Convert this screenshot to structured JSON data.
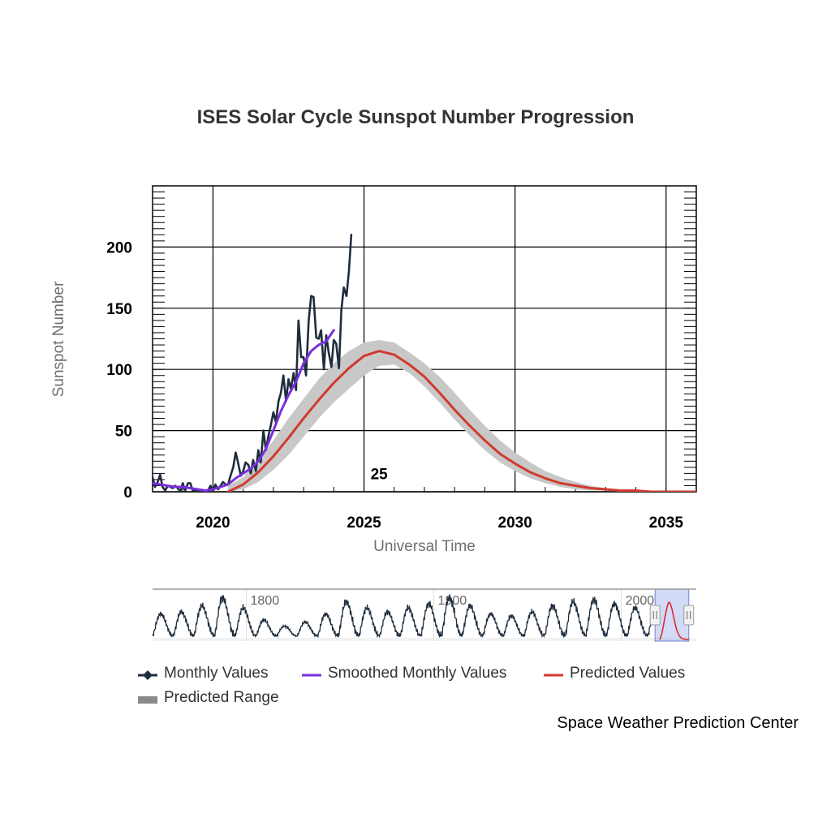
{
  "chart_data": {
    "type": "line",
    "title": "ISES Solar Cycle Sunspot Number Progression",
    "xlabel": "Universal Time",
    "ylabel": "Sunspot Number",
    "xlim": [
      2018.0,
      2036.0
    ],
    "ylim": [
      0,
      250
    ],
    "x_ticks": [
      "2020",
      "2025",
      "2030",
      "2035"
    ],
    "y_ticks": [
      "0",
      "50",
      "100",
      "150",
      "200"
    ],
    "grid": true,
    "annotations": [
      {
        "text": "25",
        "x": 2025.5,
        "y": 15
      }
    ],
    "series": [
      {
        "name": "Monthly Values",
        "color": "#1e2d3d",
        "x": [
          2018.0,
          2018.08,
          2018.17,
          2018.25,
          2018.33,
          2018.42,
          2018.5,
          2018.58,
          2018.67,
          2018.75,
          2018.83,
          2018.92,
          2019.0,
          2019.08,
          2019.17,
          2019.25,
          2019.33,
          2019.42,
          2019.5,
          2019.58,
          2019.67,
          2019.75,
          2019.83,
          2019.92,
          2020.0,
          2020.08,
          2020.17,
          2020.25,
          2020.33,
          2020.42,
          2020.5,
          2020.58,
          2020.67,
          2020.75,
          2020.83,
          2020.92,
          2021.0,
          2021.08,
          2021.17,
          2021.25,
          2021.33,
          2021.42,
          2021.5,
          2021.58,
          2021.67,
          2021.75,
          2021.83,
          2021.92,
          2022.0,
          2022.08,
          2022.17,
          2022.25,
          2022.33,
          2022.42,
          2022.5,
          2022.58,
          2022.67,
          2022.75,
          2022.83,
          2022.92,
          2023.0,
          2023.08,
          2023.17,
          2023.25,
          2023.33,
          2023.42,
          2023.5,
          2023.58,
          2023.67,
          2023.75,
          2023.83,
          2023.92,
          2024.0,
          2024.08,
          2024.17,
          2024.25,
          2024.33,
          2024.42,
          2024.5,
          2024.58
        ],
        "y": [
          12,
          4,
          8,
          14,
          4,
          1,
          5,
          4,
          3,
          5,
          3,
          0,
          7,
          1,
          7,
          7,
          1,
          1,
          1,
          0,
          1,
          0,
          1,
          5,
          0,
          6,
          2,
          5,
          8,
          6,
          6,
          13,
          20,
          32,
          24,
          13,
          17,
          24,
          22,
          15,
          26,
          17,
          34,
          24,
          50,
          34,
          45,
          55,
          65,
          57,
          74,
          81,
          95,
          74,
          92,
          84,
          97,
          83,
          140,
          110,
          110,
          95,
          140,
          160,
          159,
          126,
          125,
          132,
          100,
          128,
          114,
          102,
          124,
          121,
          101,
          148,
          167,
          160,
          180,
          210
        ]
      },
      {
        "name": "Smoothed Monthly Values",
        "color": "#7a2fe0",
        "x": [
          2018.0,
          2018.25,
          2018.5,
          2018.75,
          2019.0,
          2019.25,
          2019.5,
          2019.75,
          2020.0,
          2020.25,
          2020.5,
          2020.75,
          2021.0,
          2021.25,
          2021.5,
          2021.75,
          2022.0,
          2022.25,
          2022.5,
          2022.75,
          2023.0,
          2023.25,
          2023.5,
          2023.75,
          2024.0
        ],
        "y": [
          7,
          6,
          5,
          4,
          4,
          3,
          2,
          1,
          2,
          4,
          6,
          11,
          15,
          19,
          25,
          35,
          50,
          66,
          79,
          90,
          105,
          115,
          120,
          123,
          132
        ]
      },
      {
        "name": "Predicted Values",
        "color": "#d03a2f",
        "x": [
          2020.5,
          2021.0,
          2021.5,
          2022.0,
          2022.5,
          2023.0,
          2023.5,
          2024.0,
          2024.5,
          2025.0,
          2025.5,
          2026.0,
          2026.5,
          2027.0,
          2027.5,
          2028.0,
          2028.5,
          2029.0,
          2029.5,
          2030.0,
          2030.5,
          2031.0,
          2031.5,
          2032.0,
          2032.5,
          2033.0,
          2033.5,
          2034.0,
          2034.5,
          2035.0,
          2035.5,
          2036.0
        ],
        "y": [
          0,
          6,
          16,
          29,
          44,
          60,
          75,
          89,
          101,
          111,
          115,
          112,
          104,
          94,
          81,
          67,
          54,
          42,
          31,
          23,
          16,
          11,
          7,
          5,
          3,
          2,
          1,
          1,
          0,
          0,
          0,
          0
        ]
      },
      {
        "name": "Predicted Range",
        "color": "#c8c8c8",
        "x": [
          2020.5,
          2021.0,
          2021.5,
          2022.0,
          2022.5,
          2023.0,
          2023.5,
          2024.0,
          2024.5,
          2025.0,
          2025.5,
          2026.0,
          2026.5,
          2027.0,
          2027.5,
          2028.0,
          2028.5,
          2029.0,
          2029.5,
          2030.0,
          2030.5,
          2031.0,
          2031.5,
          2032.0,
          2032.5,
          2033.0,
          2033.5,
          2034.0,
          2034.5,
          2035.0,
          2035.5,
          2036.0
        ],
        "low": [
          0,
          2,
          8,
          18,
          30,
          45,
          60,
          73,
          84,
          95,
          103,
          104,
          97,
          86,
          73,
          59,
          46,
          34,
          24,
          17,
          11,
          7,
          4,
          2,
          1,
          1,
          0,
          0,
          0,
          0,
          0,
          0
        ],
        "high": [
          5,
          12,
          26,
          42,
          60,
          76,
          92,
          105,
          115,
          122,
          124,
          122,
          114,
          105,
          94,
          81,
          67,
          54,
          42,
          32,
          24,
          17,
          12,
          8,
          5,
          3,
          2,
          1,
          1,
          0,
          0,
          0
        ]
      }
    ],
    "navigator": {
      "x_labels": [
        "1800",
        "1900",
        "2000"
      ],
      "range": [
        1750,
        2040
      ],
      "selected": [
        2018,
        2036
      ]
    }
  },
  "legend": {
    "monthly": "Monthly Values",
    "smoothed": "Smoothed Monthly Values",
    "predicted": "Predicted Values",
    "range": "Predicted Range"
  },
  "credit": "Space Weather Prediction Center"
}
